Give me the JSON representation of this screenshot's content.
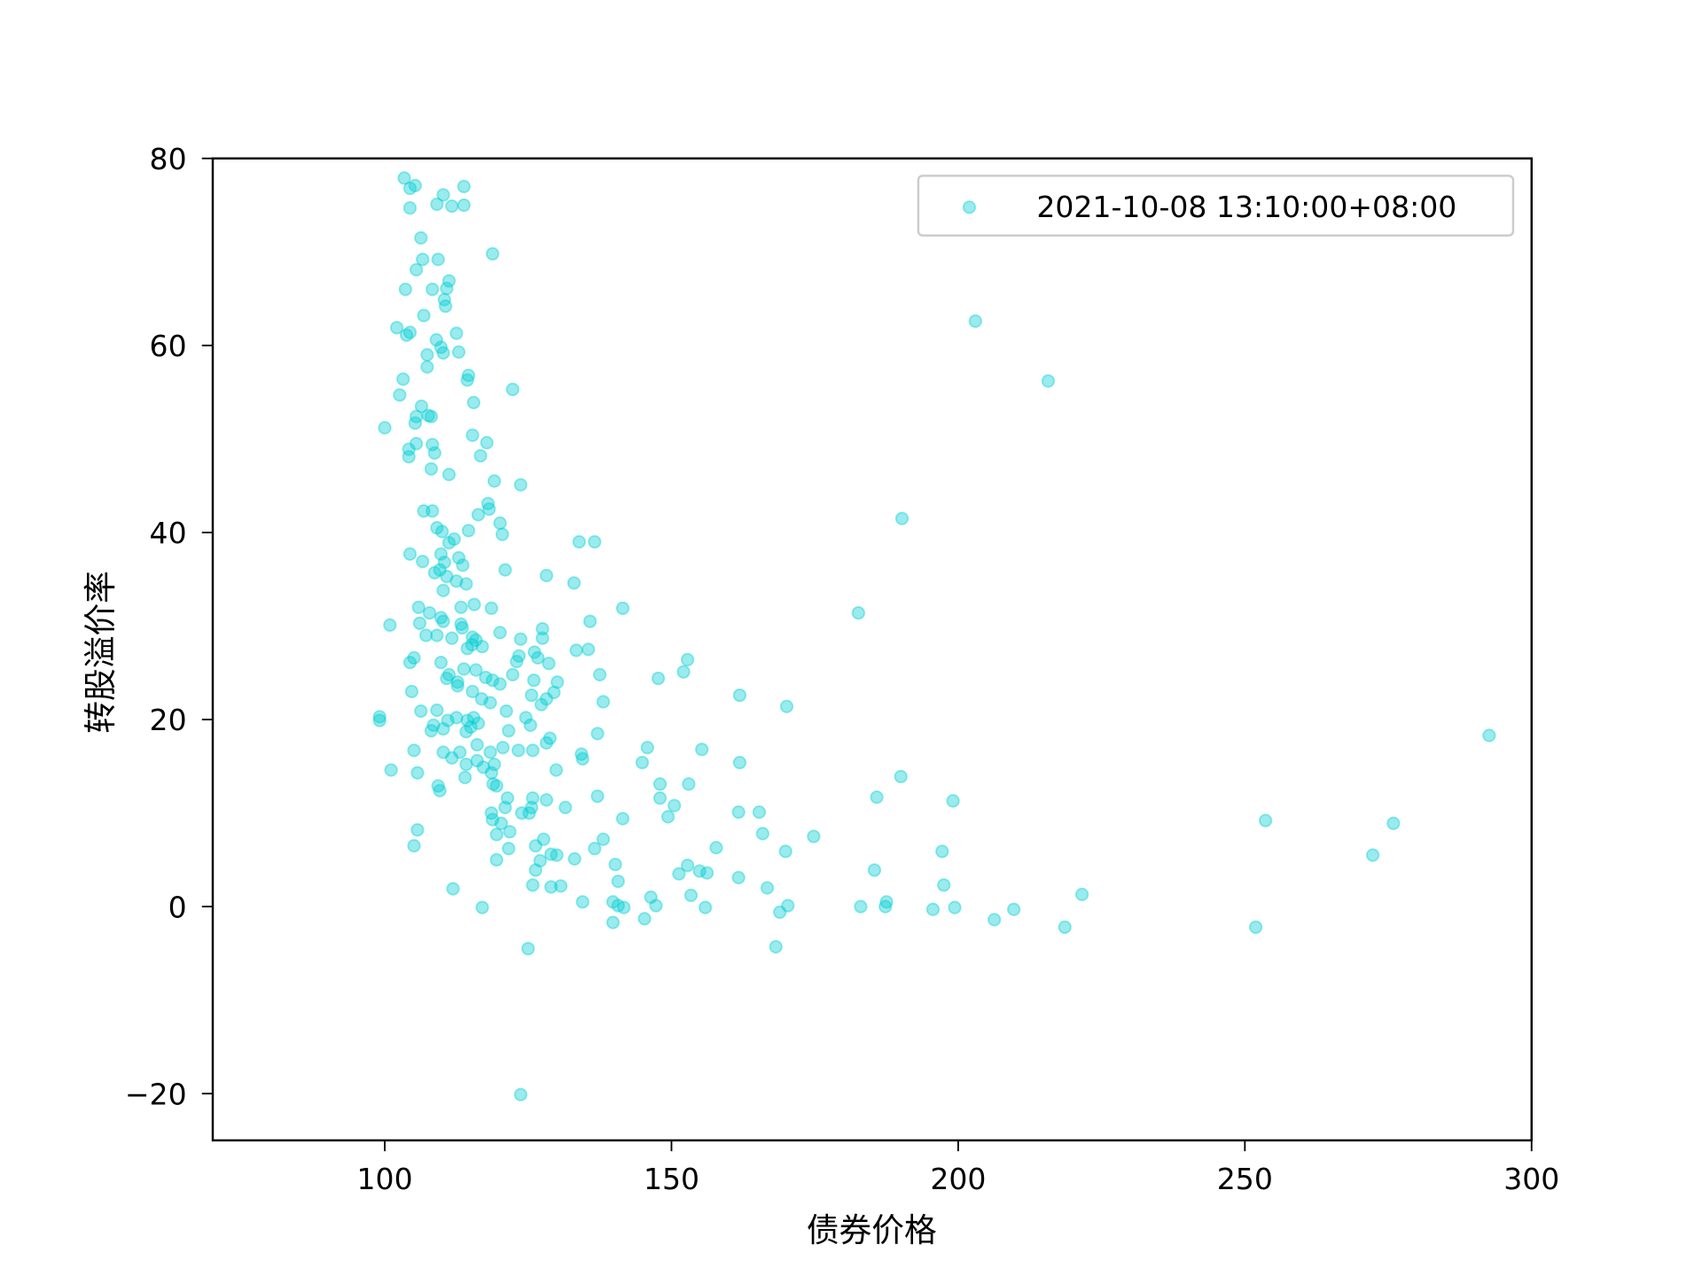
{
  "chart_data": {
    "type": "scatter",
    "title": "",
    "xlabel": "债券价格",
    "ylabel": "转股溢价率",
    "xlim": [
      70,
      300
    ],
    "ylim": [
      -25,
      80
    ],
    "xticks": [
      100,
      150,
      200,
      250,
      300
    ],
    "yticks": [
      -20,
      0,
      20,
      40,
      60,
      80
    ],
    "grid": false,
    "legend": {
      "placement": "upper-right"
    },
    "series": [
      {
        "name": "2021-10-08 13:10:00+08:00",
        "color": "#00CED1",
        "alpha": 0.4,
        "points": [
          [
            103.4,
            77.9
          ],
          [
            105.3,
            77.1
          ],
          [
            104.4,
            76.8
          ],
          [
            113.8,
            77.0
          ],
          [
            110.2,
            76.1
          ],
          [
            109.1,
            75.1
          ],
          [
            111.7,
            74.9
          ],
          [
            113.8,
            75.0
          ],
          [
            104.4,
            74.7
          ],
          [
            106.3,
            71.5
          ],
          [
            118.8,
            69.8
          ],
          [
            106.6,
            69.2
          ],
          [
            109.3,
            69.2
          ],
          [
            105.5,
            68.1
          ],
          [
            111.2,
            66.9
          ],
          [
            110.8,
            66.1
          ],
          [
            108.3,
            66.0
          ],
          [
            103.6,
            66.0
          ],
          [
            110.4,
            64.9
          ],
          [
            110.6,
            64.2
          ],
          [
            106.8,
            63.2
          ],
          [
            203.0,
            62.6
          ],
          [
            102.1,
            61.9
          ],
          [
            104.4,
            61.4
          ],
          [
            103.8,
            61.1
          ],
          [
            112.5,
            61.3
          ],
          [
            109.0,
            60.6
          ],
          [
            109.8,
            59.8
          ],
          [
            110.2,
            59.2
          ],
          [
            112.9,
            59.3
          ],
          [
            107.4,
            59.0
          ],
          [
            107.4,
            57.7
          ],
          [
            114.6,
            56.8
          ],
          [
            114.4,
            56.3
          ],
          [
            103.2,
            56.4
          ],
          [
            215.7,
            56.2
          ],
          [
            122.3,
            55.3
          ],
          [
            102.6,
            54.7
          ],
          [
            115.5,
            53.9
          ],
          [
            106.4,
            53.5
          ],
          [
            107.6,
            52.5
          ],
          [
            105.5,
            52.4
          ],
          [
            108.1,
            52.4
          ],
          [
            105.3,
            51.7
          ],
          [
            100.0,
            51.2
          ],
          [
            115.3,
            50.4
          ],
          [
            105.5,
            49.5
          ],
          [
            117.8,
            49.6
          ],
          [
            108.3,
            49.4
          ],
          [
            104.2,
            48.9
          ],
          [
            108.7,
            48.5
          ],
          [
            116.7,
            48.2
          ],
          [
            104.2,
            48.1
          ],
          [
            108.1,
            46.8
          ],
          [
            111.2,
            46.2
          ],
          [
            119.1,
            45.5
          ],
          [
            123.7,
            45.1
          ],
          [
            118.0,
            43.1
          ],
          [
            118.2,
            42.5
          ],
          [
            106.8,
            42.3
          ],
          [
            108.3,
            42.3
          ],
          [
            116.3,
            41.9
          ],
          [
            190.2,
            41.5
          ],
          [
            120.1,
            41.0
          ],
          [
            109.1,
            40.5
          ],
          [
            114.6,
            40.2
          ],
          [
            110.0,
            40.1
          ],
          [
            120.5,
            39.8
          ],
          [
            112.1,
            39.3
          ],
          [
            111.2,
            38.9
          ],
          [
            133.9,
            39.0
          ],
          [
            136.6,
            39.0
          ],
          [
            104.4,
            37.7
          ],
          [
            109.8,
            37.7
          ],
          [
            112.9,
            37.3
          ],
          [
            106.6,
            36.9
          ],
          [
            110.4,
            36.8
          ],
          [
            113.6,
            36.5
          ],
          [
            109.6,
            36.0
          ],
          [
            121.0,
            36.0
          ],
          [
            108.7,
            35.7
          ],
          [
            110.8,
            35.3
          ],
          [
            128.2,
            35.4
          ],
          [
            112.5,
            34.8
          ],
          [
            114.2,
            34.5
          ],
          [
            133.0,
            34.6
          ],
          [
            110.2,
            33.8
          ],
          [
            105.9,
            32.0
          ],
          [
            113.3,
            32.0
          ],
          [
            115.6,
            32.3
          ],
          [
            118.6,
            31.9
          ],
          [
            141.5,
            31.9
          ],
          [
            182.6,
            31.4
          ],
          [
            107.8,
            31.4
          ],
          [
            109.8,
            30.9
          ],
          [
            110.2,
            30.5
          ],
          [
            106.1,
            30.3
          ],
          [
            135.8,
            30.5
          ],
          [
            113.3,
            30.2
          ],
          [
            100.9,
            30.1
          ],
          [
            113.5,
            29.8
          ],
          [
            127.5,
            29.7
          ],
          [
            120.1,
            29.3
          ],
          [
            107.2,
            29.0
          ],
          [
            109.1,
            29.0
          ],
          [
            115.3,
            28.8
          ],
          [
            123.7,
            28.6
          ],
          [
            127.5,
            28.7
          ],
          [
            111.7,
            28.7
          ],
          [
            115.9,
            28.5
          ],
          [
            115.2,
            28.0
          ],
          [
            117.0,
            27.8
          ],
          [
            114.4,
            27.6
          ],
          [
            135.5,
            27.5
          ],
          [
            133.4,
            27.4
          ],
          [
            126.1,
            27.2
          ],
          [
            123.4,
            26.8
          ],
          [
            123.0,
            26.2
          ],
          [
            105.1,
            26.6
          ],
          [
            152.8,
            26.4
          ],
          [
            104.4,
            26.1
          ],
          [
            109.8,
            26.1
          ],
          [
            126.7,
            26.6
          ],
          [
            128.6,
            26.0
          ],
          [
            113.8,
            25.4
          ],
          [
            115.9,
            25.3
          ],
          [
            111.2,
            24.8
          ],
          [
            152.1,
            25.1
          ],
          [
            137.5,
            24.8
          ],
          [
            122.3,
            24.8
          ],
          [
            117.6,
            24.5
          ],
          [
            118.8,
            24.2
          ],
          [
            147.7,
            24.4
          ],
          [
            110.8,
            24.4
          ],
          [
            112.7,
            24.0
          ],
          [
            126.0,
            24.2
          ],
          [
            130.1,
            24.0
          ],
          [
            112.7,
            23.6
          ],
          [
            120.1,
            23.8
          ],
          [
            104.7,
            23.0
          ],
          [
            115.3,
            23.0
          ],
          [
            129.5,
            22.9
          ],
          [
            161.9,
            22.6
          ],
          [
            125.6,
            22.6
          ],
          [
            116.9,
            22.2
          ],
          [
            128.2,
            22.2
          ],
          [
            138.1,
            21.9
          ],
          [
            118.4,
            21.8
          ],
          [
            127.3,
            21.6
          ],
          [
            170.1,
            21.4
          ],
          [
            106.3,
            20.9
          ],
          [
            109.1,
            21.0
          ],
          [
            121.2,
            20.9
          ],
          [
            99.1,
            20.3
          ],
          [
            99.1,
            19.9
          ],
          [
            112.5,
            20.2
          ],
          [
            115.5,
            20.2
          ],
          [
            124.6,
            20.2
          ],
          [
            111.0,
            19.9
          ],
          [
            114.4,
            19.9
          ],
          [
            116.3,
            19.6
          ],
          [
            108.5,
            19.4
          ],
          [
            125.4,
            19.4
          ],
          [
            115.0,
            19.2
          ],
          [
            110.2,
            19.0
          ],
          [
            108.1,
            18.8
          ],
          [
            121.6,
            18.8
          ],
          [
            114.2,
            18.7
          ],
          [
            292.6,
            18.3
          ],
          [
            137.1,
            18.5
          ],
          [
            128.8,
            18.0
          ],
          [
            128.2,
            17.5
          ],
          [
            116.1,
            17.3
          ],
          [
            105.1,
            16.7
          ],
          [
            110.2,
            16.5
          ],
          [
            113.1,
            16.5
          ],
          [
            120.6,
            17.0
          ],
          [
            123.3,
            16.7
          ],
          [
            125.8,
            16.7
          ],
          [
            145.8,
            17.0
          ],
          [
            155.3,
            16.8
          ],
          [
            118.4,
            16.5
          ],
          [
            134.3,
            16.3
          ],
          [
            111.7,
            15.9
          ],
          [
            134.5,
            15.8
          ],
          [
            144.9,
            15.4
          ],
          [
            161.9,
            15.4
          ],
          [
            116.1,
            15.6
          ],
          [
            114.2,
            15.2
          ],
          [
            119.1,
            15.2
          ],
          [
            117.2,
            14.9
          ],
          [
            101.1,
            14.6
          ],
          [
            129.9,
            14.6
          ],
          [
            105.7,
            14.3
          ],
          [
            118.6,
            14.3
          ],
          [
            114.0,
            13.8
          ],
          [
            190.0,
            13.9
          ],
          [
            148.0,
            13.1
          ],
          [
            153.0,
            13.1
          ],
          [
            118.9,
            13.1
          ],
          [
            109.3,
            12.9
          ],
          [
            119.5,
            12.9
          ],
          [
            109.6,
            12.4
          ],
          [
            137.1,
            11.8
          ],
          [
            185.8,
            11.7
          ],
          [
            121.4,
            11.6
          ],
          [
            125.8,
            11.6
          ],
          [
            128.2,
            11.4
          ],
          [
            199.1,
            11.3
          ],
          [
            148.0,
            11.6
          ],
          [
            150.5,
            10.8
          ],
          [
            131.5,
            10.6
          ],
          [
            125.6,
            10.6
          ],
          [
            121.0,
            10.6
          ],
          [
            118.6,
            10.0
          ],
          [
            123.9,
            10.0
          ],
          [
            125.2,
            10.0
          ],
          [
            161.7,
            10.1
          ],
          [
            165.3,
            10.1
          ],
          [
            149.4,
            9.6
          ],
          [
            141.5,
            9.4
          ],
          [
            118.8,
            9.3
          ],
          [
            253.6,
            9.2
          ],
          [
            275.9,
            8.9
          ],
          [
            120.3,
            8.9
          ],
          [
            105.7,
            8.2
          ],
          [
            121.8,
            8.0
          ],
          [
            119.5,
            7.7
          ],
          [
            165.9,
            7.8
          ],
          [
            174.8,
            7.5
          ],
          [
            138.1,
            7.2
          ],
          [
            127.7,
            7.2
          ],
          [
            126.3,
            6.5
          ],
          [
            105.1,
            6.5
          ],
          [
            121.6,
            6.2
          ],
          [
            136.6,
            6.2
          ],
          [
            157.8,
            6.3
          ],
          [
            169.9,
            5.9
          ],
          [
            197.2,
            5.9
          ],
          [
            129.0,
            5.6
          ],
          [
            130.0,
            5.5
          ],
          [
            272.3,
            5.5
          ],
          [
            133.1,
            5.1
          ],
          [
            127.1,
            4.9
          ],
          [
            119.5,
            5.0
          ],
          [
            140.2,
            4.5
          ],
          [
            152.8,
            4.4
          ],
          [
            154.9,
            3.8
          ],
          [
            156.2,
            3.6
          ],
          [
            151.3,
            3.5
          ],
          [
            126.3,
            3.9
          ],
          [
            185.4,
            3.9
          ],
          [
            161.7,
            3.1
          ],
          [
            140.7,
            2.7
          ],
          [
            197.5,
            2.3
          ],
          [
            125.8,
            2.3
          ],
          [
            130.7,
            2.2
          ],
          [
            129.0,
            2.1
          ],
          [
            111.9,
            1.9
          ],
          [
            166.7,
            2.0
          ],
          [
            221.6,
            1.3
          ],
          [
            153.4,
            1.2
          ],
          [
            146.4,
            1.0
          ],
          [
            134.5,
            0.5
          ],
          [
            139.8,
            0.5
          ],
          [
            187.5,
            0.5
          ],
          [
            140.7,
            0.1
          ],
          [
            141.7,
            -0.1
          ],
          [
            147.3,
            0.1
          ],
          [
            170.3,
            0.1
          ],
          [
            183.0,
            0.0
          ],
          [
            187.3,
            0.0
          ],
          [
            199.4,
            -0.1
          ],
          [
            117.0,
            -0.1
          ],
          [
            155.9,
            -0.1
          ],
          [
            195.6,
            -0.3
          ],
          [
            209.7,
            -0.3
          ],
          [
            168.9,
            -0.6
          ],
          [
            145.3,
            -1.3
          ],
          [
            206.3,
            -1.4
          ],
          [
            139.8,
            -1.7
          ],
          [
            218.6,
            -2.2
          ],
          [
            251.9,
            -2.2
          ],
          [
            168.2,
            -4.3
          ],
          [
            125.0,
            -4.5
          ],
          [
            123.7,
            -20.1
          ]
        ]
      }
    ]
  }
}
